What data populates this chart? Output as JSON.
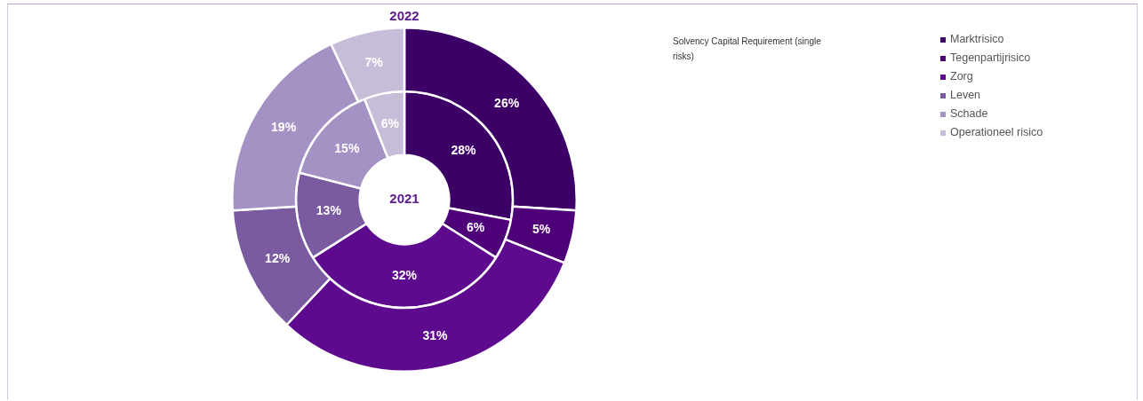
{
  "chart_data": {
    "type": "donut",
    "title": "Solvency Capital Requirement (single risks)",
    "categories": [
      "Marktrisico",
      "Tegenpartijrisico",
      "Zorg",
      "Leven",
      "Schade",
      "Operationeel risico"
    ],
    "colors": [
      "#3d0066",
      "#4e0078",
      "#5e0a8e",
      "#7a5ba0",
      "#a592c4",
      "#c7bdd8"
    ],
    "series": [
      {
        "name": "2022",
        "values": [
          26,
          5,
          31,
          12,
          19,
          7
        ],
        "value_labels": [
          "26%",
          "5%",
          "31%",
          "12%",
          "19%",
          "7%"
        ]
      },
      {
        "name": "2021",
        "values": [
          28,
          6,
          32,
          13,
          15,
          6
        ],
        "value_labels": [
          "28%",
          "6%",
          "32%",
          "13%",
          "15%",
          "6%"
        ]
      }
    ],
    "legend": "right"
  }
}
